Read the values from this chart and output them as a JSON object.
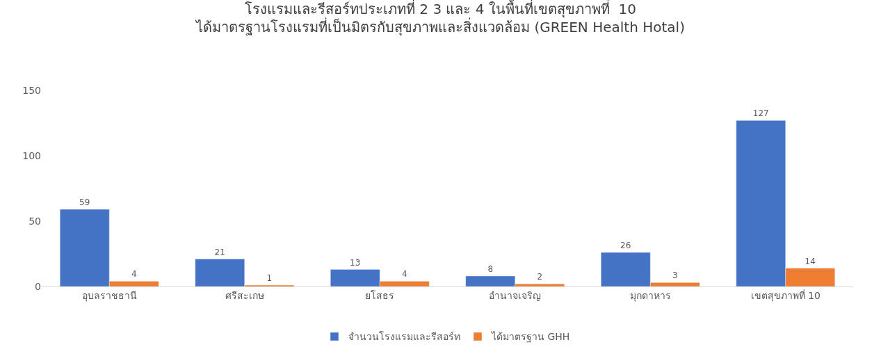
{
  "chart_data": {
    "type": "bar",
    "title": "โรงแรมและรีสอร์ทประเภทที่ 2 3 และ 4 ในพื้นที่เขตสุขภาพที่  10\nได้มาตรฐานโรงแรมที่เป็นมิตรกับสุขภาพและสิ่งแวดล้อม (GREEN Health Hotal)",
    "categories": [
      "อุบลราชธานี",
      "ศรีสะเกษ",
      "ยโสธร",
      "อำนาจเจริญ",
      "มุกดาหาร",
      "เขตสุขภาพที่ 10"
    ],
    "series": [
      {
        "name": "จำนวนโรงแรมและรีสอร์ท",
        "color": "#4472c4",
        "values": [
          59,
          21,
          13,
          8,
          26,
          127
        ]
      },
      {
        "name": "ได้มาตรฐาน GHH",
        "color": "#ed7d31",
        "values": [
          4,
          1,
          4,
          2,
          3,
          14
        ]
      }
    ],
    "ylim": [
      0,
      150
    ],
    "yticks": [
      0,
      50,
      100,
      150
    ],
    "grid": false,
    "legend": "bottom",
    "data_labels": true
  }
}
